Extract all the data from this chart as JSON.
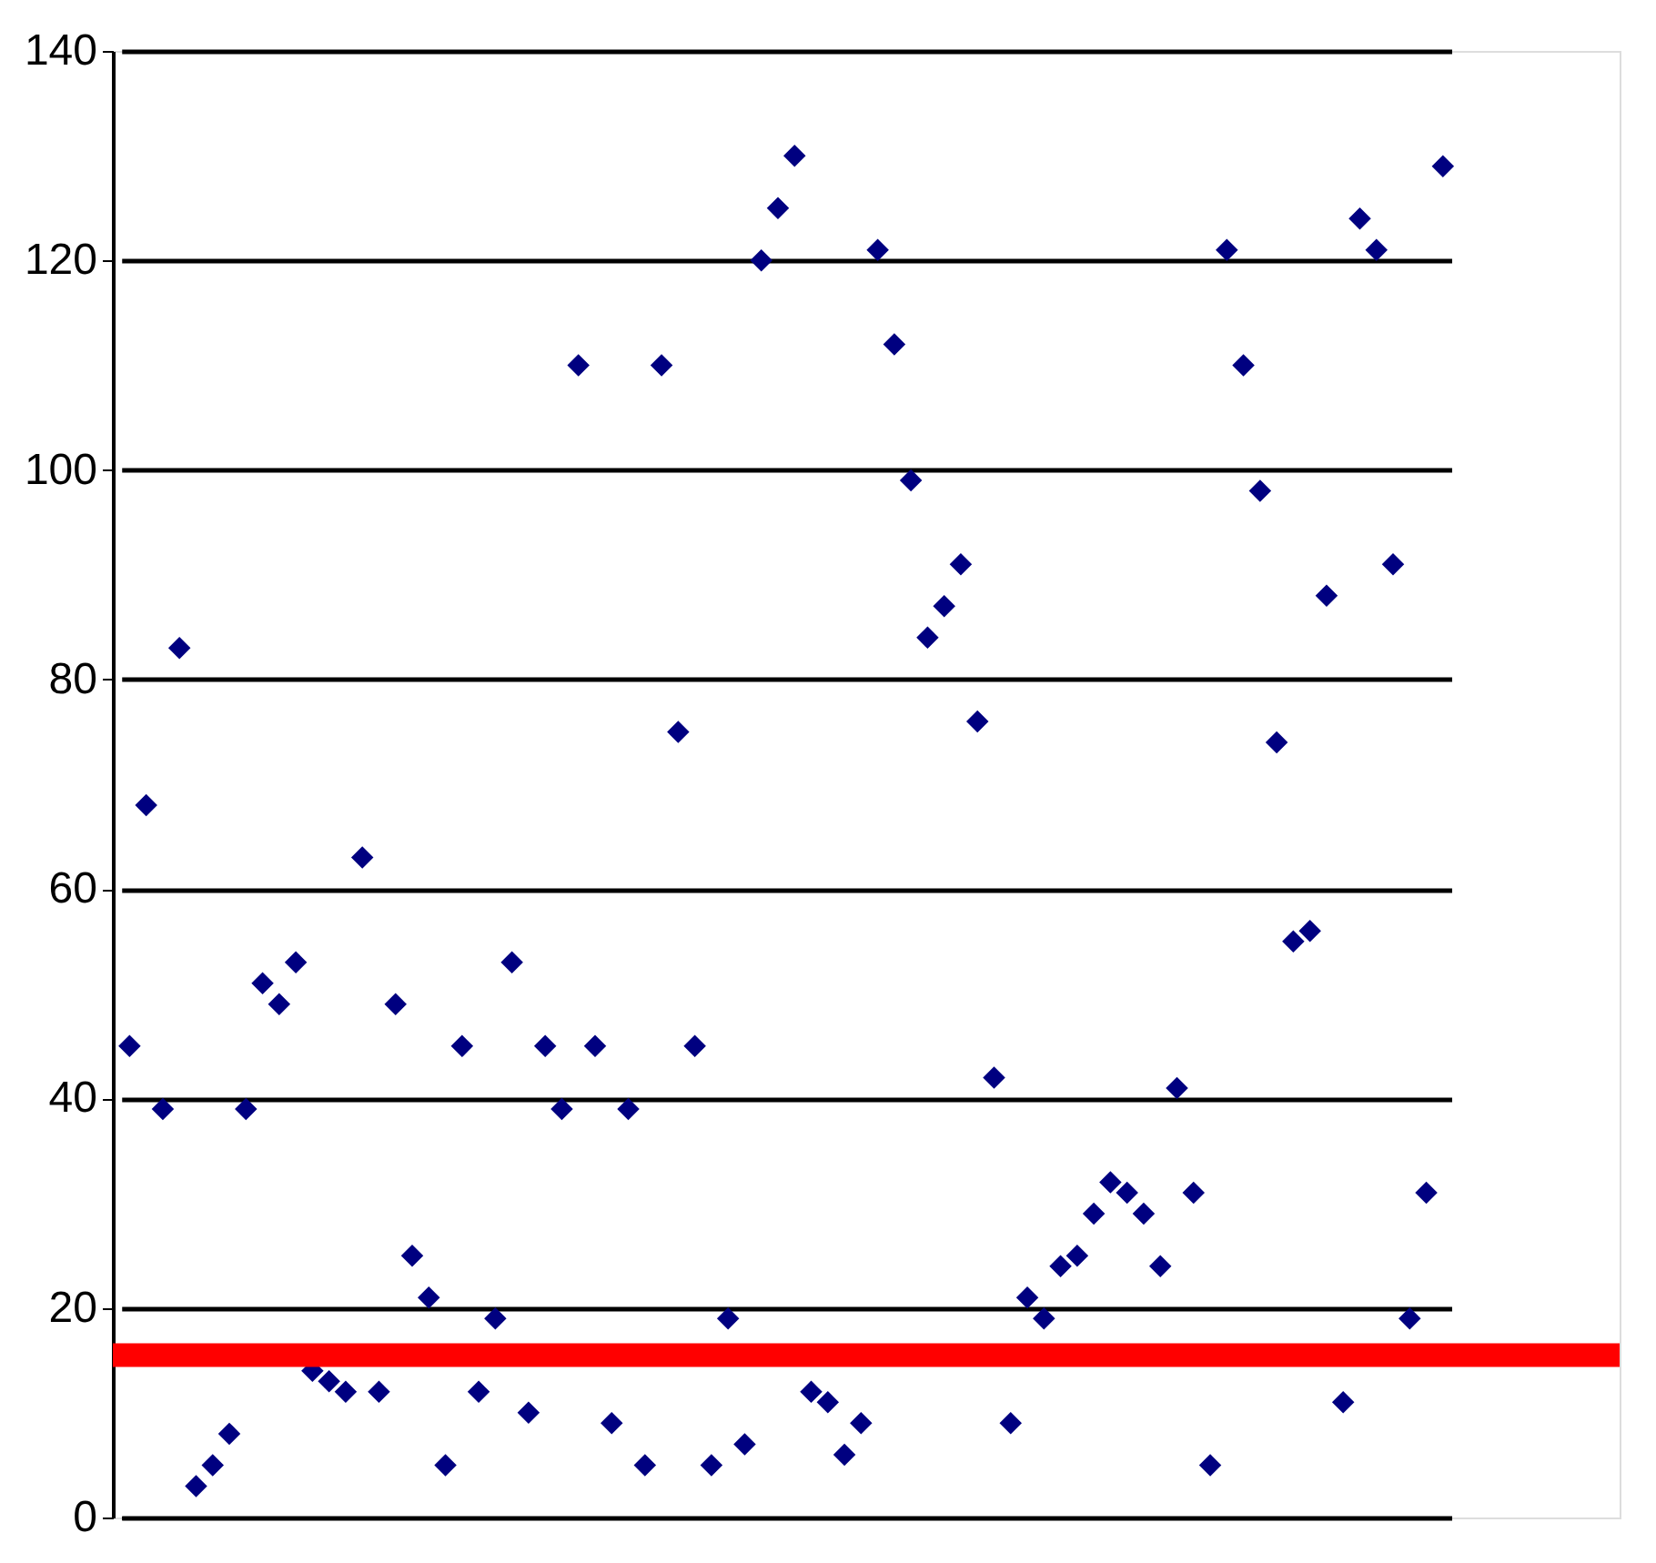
{
  "chart_data": {
    "type": "scatter",
    "categories": [
      null,
      null,
      null,
      null,
      null,
      null,
      null,
      null,
      null,
      null,
      null,
      null,
      null,
      null,
      null,
      null,
      null,
      null,
      null,
      null,
      null,
      null,
      null,
      null,
      null,
      null,
      null,
      null,
      null,
      null,
      null,
      null,
      null,
      null,
      null,
      null,
      null,
      null,
      null,
      null,
      null,
      null,
      null,
      null,
      null,
      null,
      null,
      null,
      null,
      null,
      null,
      null,
      null,
      null,
      null,
      null,
      null,
      null,
      null,
      null,
      null,
      null,
      null,
      null,
      null,
      null,
      null,
      null,
      null,
      null,
      null,
      null,
      null,
      null,
      null,
      null,
      null,
      null,
      null,
      null
    ],
    "series": [
      {
        "color": "#000080",
        "values": [
          45,
          68,
          39,
          83,
          3,
          5,
          8,
          39,
          51,
          49,
          53,
          14,
          13,
          12,
          63,
          12,
          49,
          25,
          21,
          5,
          45,
          12,
          19,
          53,
          10,
          45,
          39,
          110,
          45,
          9,
          39,
          5,
          110,
          75,
          45,
          5,
          19,
          7,
          120,
          125,
          130,
          12,
          11,
          6,
          9,
          121,
          112,
          99,
          84,
          87,
          91,
          76,
          42,
          9,
          21,
          19,
          24,
          25,
          29,
          32,
          31,
          29,
          24,
          41,
          31,
          5,
          121,
          110,
          98,
          74,
          55,
          56,
          88,
          11,
          124,
          121,
          91,
          19,
          31,
          129
        ]
      }
    ],
    "ylim": [
      0,
      140
    ],
    "yticks": [
      0,
      20,
      40,
      60,
      80,
      100,
      120,
      140
    ],
    "ref_lines": [
      {
        "axis": "y",
        "value": 15.5,
        "color": "#ff0000"
      }
    ],
    "grid": "y",
    "marker": "diamond",
    "tick_labels": "y"
  }
}
